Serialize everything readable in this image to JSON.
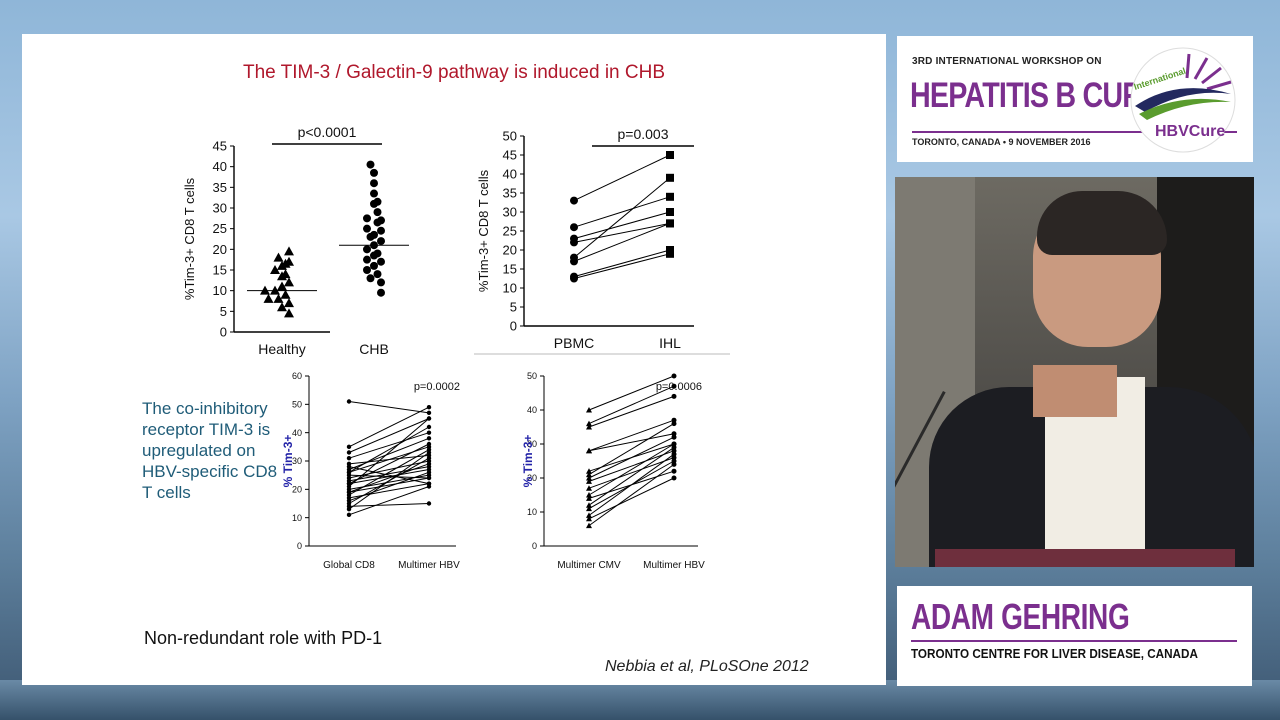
{
  "slide": {
    "title": "The TIM-3 / Galectin-9 pathway is induced in CHB",
    "left_note": "The co-inhibitory receptor TIM-3 is upregulated on HBV-specific CD8 T cells",
    "bottom_note": "Non-redundant role with PD-1",
    "citation": "Nebbia et al, PLoSOne 2012"
  },
  "workshop": {
    "superscript_line": "3RD INTERNATIONAL WORKSHOP ON",
    "name": "HEPATITIS B CURE",
    "location": "TORONTO, CANADA • 9 NOVEMBER 2016",
    "logo_small": "International",
    "logo_main": "HBVCure"
  },
  "speaker": {
    "name": "ADAM GEHRING",
    "affiliation": "TORONTO CENTRE FOR LIVER DISEASE, CANADA"
  },
  "colors": {
    "title_red": "#b0182c",
    "note_teal": "#1f5c78",
    "purple": "#7b2f8e",
    "tim3_blue": "#2323a8"
  },
  "chart_data": [
    {
      "type": "scatter",
      "categories": [
        "Healthy",
        "CHB"
      ],
      "ylabel": "%Tim-3+ CD8 T cells",
      "ylim": [
        0,
        45
      ],
      "yticks": [
        0,
        5,
        10,
        15,
        20,
        25,
        30,
        35,
        40,
        45
      ],
      "annotation": "p<0.0001",
      "series": [
        {
          "category": "Healthy",
          "marker": "triangle",
          "median": 10,
          "values": [
            19.5,
            18,
            17,
            16.5,
            16,
            15,
            14,
            13.5,
            12,
            11,
            10,
            10,
            9,
            8,
            8,
            7,
            6,
            4.5
          ]
        },
        {
          "category": "CHB",
          "marker": "circle",
          "median": 21,
          "values": [
            40.5,
            38.5,
            36,
            33.5,
            31.5,
            31,
            29,
            27.5,
            27,
            26.5,
            25,
            24.5,
            23.5,
            23,
            22,
            21,
            20,
            19,
            18.5,
            17.5,
            17,
            16,
            15,
            14,
            13,
            12,
            9.5
          ]
        }
      ]
    },
    {
      "type": "line",
      "categories": [
        "PBMC",
        "IHL"
      ],
      "ylabel": "%Tim-3+ CD8 T cells",
      "ylim": [
        0,
        50
      ],
      "yticks": [
        0,
        5,
        10,
        15,
        20,
        25,
        30,
        35,
        40,
        45,
        50
      ],
      "annotation": "p=0.003",
      "pairs": [
        [
          33,
          45
        ],
        [
          26,
          34
        ],
        [
          23,
          30
        ],
        [
          22,
          27
        ],
        [
          18,
          39
        ],
        [
          17,
          27
        ],
        [
          13,
          20
        ],
        [
          12.5,
          19
        ]
      ]
    },
    {
      "type": "line",
      "categories": [
        "Global CD8",
        "Multimer HBV"
      ],
      "ylabel": "% Tim-3+",
      "ylim": [
        0,
        60
      ],
      "yticks": [
        0,
        10,
        20,
        30,
        40,
        50,
        60
      ],
      "annotation": "p=0.0002",
      "pairs": [
        [
          51,
          47
        ],
        [
          35,
          49
        ],
        [
          33,
          45
        ],
        [
          31,
          40
        ],
        [
          29,
          32
        ],
        [
          28,
          22
        ],
        [
          27,
          38
        ],
        [
          26,
          35
        ],
        [
          25,
          24
        ],
        [
          24,
          30
        ],
        [
          23,
          28
        ],
        [
          22,
          27
        ],
        [
          21,
          45
        ],
        [
          20,
          25
        ],
        [
          19,
          29
        ],
        [
          18,
          34
        ],
        [
          17,
          22
        ],
        [
          16,
          26
        ],
        [
          15,
          31
        ],
        [
          14,
          15
        ],
        [
          13,
          33
        ],
        [
          11,
          21
        ],
        [
          26,
          42
        ],
        [
          22,
          36
        ],
        [
          19,
          24
        ]
      ]
    },
    {
      "type": "line",
      "categories": [
        "Multimer CMV",
        "Multimer HBV"
      ],
      "ylabel": "% Tim-3+",
      "ylim": [
        0,
        50
      ],
      "yticks": [
        0,
        10,
        20,
        30,
        40,
        50
      ],
      "annotation": "p=0.0006",
      "pairs": [
        [
          40,
          50
        ],
        [
          36,
          47
        ],
        [
          35,
          44
        ],
        [
          28,
          37
        ],
        [
          28,
          33
        ],
        [
          22,
          30
        ],
        [
          21,
          36
        ],
        [
          20,
          32
        ],
        [
          19,
          28
        ],
        [
          17,
          26
        ],
        [
          15,
          30
        ],
        [
          14,
          22
        ],
        [
          12,
          29
        ],
        [
          11,
          25
        ],
        [
          9,
          27
        ],
        [
          8,
          20
        ],
        [
          6,
          24
        ]
      ]
    }
  ]
}
